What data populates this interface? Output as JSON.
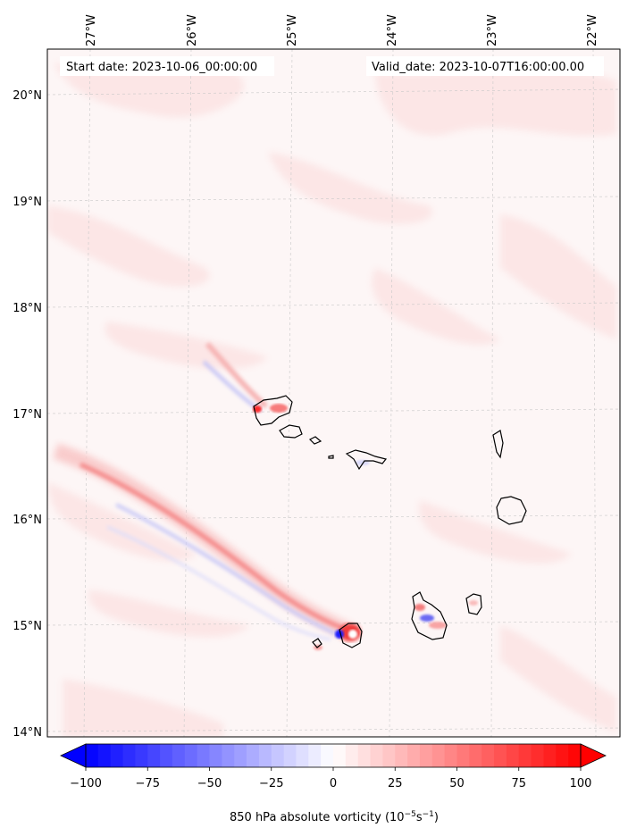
{
  "header": {
    "start_date": "Start date: 2023-10-06_00:00:00",
    "valid_date": "Valid_date: 2023-10-07T16:00:00.00"
  },
  "map": {
    "longitude_labels": [
      "27°W",
      "26°W",
      "25°W",
      "24°W",
      "23°W",
      "22°W"
    ],
    "latitude_labels": [
      "20°N",
      "19°N",
      "18°N",
      "17°N",
      "16°N",
      "15°N",
      "14°N"
    ],
    "gridlines": true
  },
  "colorbar": {
    "label": "850 hPa absolute vorticity (10",
    "label_exp": "−5",
    "label_unit": "s",
    "label_exp2": "−1",
    "label_close": ")",
    "ticks": [
      "−100",
      "−75",
      "−50",
      "−25",
      "0",
      "25",
      "50",
      "75",
      "100"
    ],
    "tick_values": [
      -100,
      -75,
      -50,
      -25,
      0,
      25,
      50,
      75,
      100
    ],
    "min": -100,
    "max": 100,
    "extend": "both",
    "cmap": "bwr",
    "low_color": "#0000ff",
    "mid_color": "#ffffff",
    "high_color": "#ff0000"
  },
  "colors": {
    "coastline": "#000000",
    "grid": "#bbbbbb",
    "positive_background": "#fdeeee"
  }
}
